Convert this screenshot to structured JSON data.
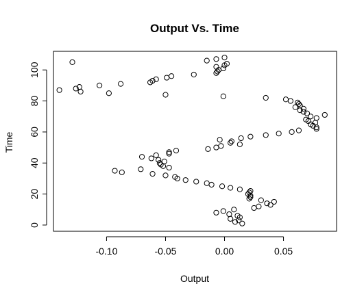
{
  "chart_data": {
    "type": "scatter",
    "title": "Output Vs. Time",
    "xlabel": "Output",
    "ylabel": "Time",
    "xlim": [
      -0.145,
      0.095
    ],
    "ylim": [
      -4,
      112
    ],
    "xticks": [
      -0.1,
      -0.05,
      0.0,
      0.05
    ],
    "xtick_labels": [
      "-0.10",
      "-0.05",
      "0.00",
      "0.05"
    ],
    "yticks": [
      0,
      20,
      40,
      60,
      80,
      100
    ],
    "ytick_labels": [
      "0",
      "20",
      "40",
      "60",
      "80",
      "100"
    ],
    "grid": false,
    "legend": false,
    "marker": "open-circle",
    "marker_color": "#000000",
    "points": [
      [
        -0.007,
        8
      ],
      [
        -0.001,
        9
      ],
      [
        0.004,
        7
      ],
      [
        0.005,
        4
      ],
      [
        0.008,
        10
      ],
      [
        0.009,
        2
      ],
      [
        0.011,
        6
      ],
      [
        0.012,
        3
      ],
      [
        0.013,
        5
      ],
      [
        0.015,
        1
      ],
      [
        0.025,
        11
      ],
      [
        0.029,
        12
      ],
      [
        0.031,
        16
      ],
      [
        0.036,
        14
      ],
      [
        0.039,
        13
      ],
      [
        0.042,
        15
      ],
      [
        0.021,
        17
      ],
      [
        0.022,
        18
      ],
      [
        0.022,
        19
      ],
      [
        0.02,
        20
      ],
      [
        0.021,
        21
      ],
      [
        0.022,
        22
      ],
      [
        0.013,
        23
      ],
      [
        0.005,
        24
      ],
      [
        -0.002,
        25
      ],
      [
        -0.011,
        26
      ],
      [
        -0.015,
        27
      ],
      [
        -0.024,
        28
      ],
      [
        -0.033,
        29
      ],
      [
        -0.04,
        30
      ],
      [
        -0.042,
        31
      ],
      [
        -0.05,
        32
      ],
      [
        -0.061,
        33
      ],
      [
        -0.087,
        34
      ],
      [
        -0.093,
        35
      ],
      [
        -0.071,
        36
      ],
      [
        -0.047,
        37
      ],
      [
        -0.052,
        38
      ],
      [
        -0.054,
        39
      ],
      [
        -0.055,
        40
      ],
      [
        -0.051,
        41
      ],
      [
        -0.056,
        42
      ],
      [
        -0.062,
        43
      ],
      [
        -0.07,
        44
      ],
      [
        -0.058,
        45
      ],
      [
        -0.047,
        46
      ],
      [
        -0.047,
        47
      ],
      [
        -0.041,
        48
      ],
      [
        -0.014,
        49
      ],
      [
        -0.007,
        50
      ],
      [
        -0.003,
        51
      ],
      [
        0.013,
        52
      ],
      [
        0.005,
        53
      ],
      [
        0.006,
        54
      ],
      [
        -0.004,
        55
      ],
      [
        0.014,
        56
      ],
      [
        0.022,
        57
      ],
      [
        0.035,
        58
      ],
      [
        0.046,
        59
      ],
      [
        0.057,
        60
      ],
      [
        0.063,
        61
      ],
      [
        0.078,
        62
      ],
      [
        0.078,
        63
      ],
      [
        0.075,
        64
      ],
      [
        0.073,
        65
      ],
      [
        0.077,
        66
      ],
      [
        0.071,
        67
      ],
      [
        0.069,
        68
      ],
      [
        0.078,
        69
      ],
      [
        0.073,
        70
      ],
      [
        0.085,
        71
      ],
      [
        0.07,
        72
      ],
      [
        0.067,
        73
      ],
      [
        0.064,
        74
      ],
      [
        0.067,
        75
      ],
      [
        0.06,
        76
      ],
      [
        0.064,
        77
      ],
      [
        0.063,
        78
      ],
      [
        0.062,
        79
      ],
      [
        0.056,
        80
      ],
      [
        0.052,
        81
      ],
      [
        0.035,
        82
      ],
      [
        -0.001,
        83
      ],
      [
        -0.05,
        84
      ],
      [
        -0.098,
        85
      ],
      [
        -0.122,
        86
      ],
      [
        -0.14,
        87
      ],
      [
        -0.126,
        88
      ],
      [
        -0.123,
        89
      ],
      [
        -0.106,
        90
      ],
      [
        -0.088,
        91
      ],
      [
        -0.063,
        92
      ],
      [
        -0.061,
        93
      ],
      [
        -0.058,
        94
      ],
      [
        -0.049,
        95
      ],
      [
        -0.045,
        96
      ],
      [
        -0.026,
        97
      ],
      [
        -0.007,
        98
      ],
      [
        -0.006,
        99
      ],
      [
        -0.005,
        100
      ],
      [
        -0.001,
        101
      ],
      [
        -0.007,
        102
      ],
      [
        0.0,
        103
      ],
      [
        0.002,
        104
      ],
      [
        -0.129,
        105
      ],
      [
        -0.015,
        106
      ],
      [
        -0.007,
        107
      ],
      [
        0.0,
        108
      ]
    ]
  }
}
